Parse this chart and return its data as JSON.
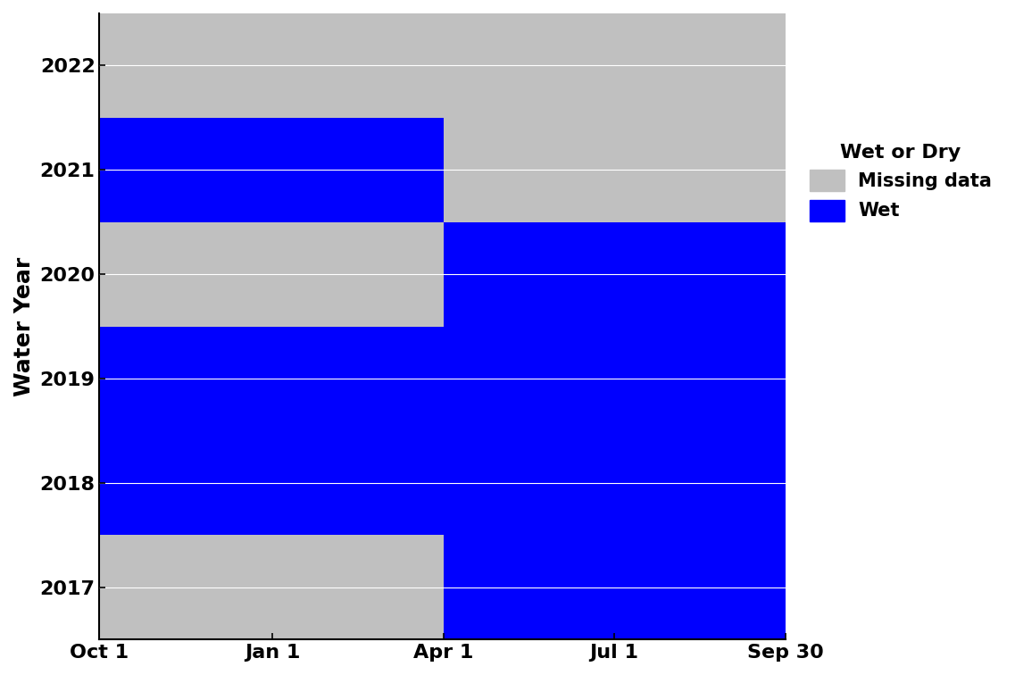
{
  "ylabel": "Water Year",
  "years": [
    2017,
    2018,
    2019,
    2020,
    2021,
    2022
  ],
  "x_tick_labels": [
    "Oct 1",
    "Jan 1",
    "Apr 1",
    "Jul 1",
    "Sep 30"
  ],
  "x_tick_positions": [
    0,
    92,
    183,
    274,
    365
  ],
  "colors": {
    "missing": "#c0c0c0",
    "wet": "#0000ff"
  },
  "segments": [
    {
      "year": 2017,
      "status": "wet",
      "start": 183,
      "end": 365
    },
    {
      "year": 2018,
      "status": "wet",
      "start": 0,
      "end": 365
    },
    {
      "year": 2019,
      "status": "wet",
      "start": 0,
      "end": 365
    },
    {
      "year": 2020,
      "status": "wet",
      "start": 183,
      "end": 365
    },
    {
      "year": 2021,
      "status": "wet",
      "start": 0,
      "end": 183
    },
    {
      "year": 2021,
      "status": "missing_patch",
      "start": 183,
      "end": 365
    },
    {
      "year": 2022,
      "status": "missing_patch",
      "start": 0,
      "end": 365
    }
  ],
  "bar_height": 1.0,
  "legend_title": "Wet or Dry",
  "legend_items": [
    {
      "label": "Missing data",
      "color": "#c0c0c0"
    },
    {
      "label": "Wet",
      "color": "#0000ff"
    }
  ],
  "background_color": "#ffffff",
  "plot_bg_color": "#c0c0c0",
  "ylim": [
    2016.5,
    2022.5
  ],
  "xlim": [
    0,
    365
  ],
  "figsize": [
    11.37,
    7.56
  ],
  "dpi": 100
}
